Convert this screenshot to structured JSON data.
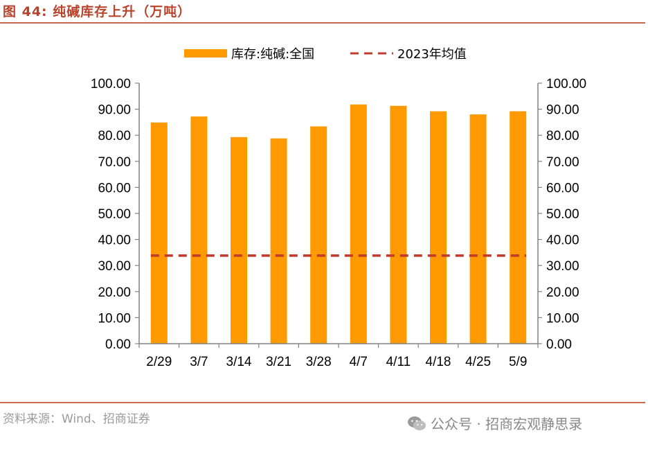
{
  "header": {
    "figure_title": "图 44:  纯碱库存上升（万吨）"
  },
  "footer": {
    "source": "资料来源：Wind、招商证券",
    "watermark": "公众号 · 招商宏观静思录",
    "watermark_icon": "wechat-icon"
  },
  "colors": {
    "bar": "#ff9900",
    "avg_line": "#c0392b",
    "title": "#b8432b",
    "rule": "#c8694e"
  },
  "chart_data": {
    "type": "bar",
    "categories": [
      "2/29",
      "3/7",
      "3/14",
      "3/21",
      "3/28",
      "4/7",
      "4/11",
      "4/18",
      "4/25",
      "5/9"
    ],
    "series": [
      {
        "name": "库存:纯碱:全国",
        "type": "bar",
        "values": [
          84.9,
          87.2,
          79.3,
          78.8,
          83.4,
          91.8,
          91.3,
          89.2,
          88.0,
          89.2
        ]
      },
      {
        "name": "2023年均值",
        "type": "line",
        "style": "dashed",
        "values": [
          33.8,
          33.8,
          33.8,
          33.8,
          33.8,
          33.8,
          33.8,
          33.8,
          33.8,
          33.8
        ]
      }
    ],
    "yticks": [
      "0.00",
      "10.00",
      "20.00",
      "30.00",
      "40.00",
      "50.00",
      "60.00",
      "70.00",
      "80.00",
      "90.00",
      "100.00"
    ],
    "ylim": [
      0,
      100
    ],
    "y2lim": [
      0,
      100
    ],
    "legend_position": "top",
    "grid": false
  }
}
